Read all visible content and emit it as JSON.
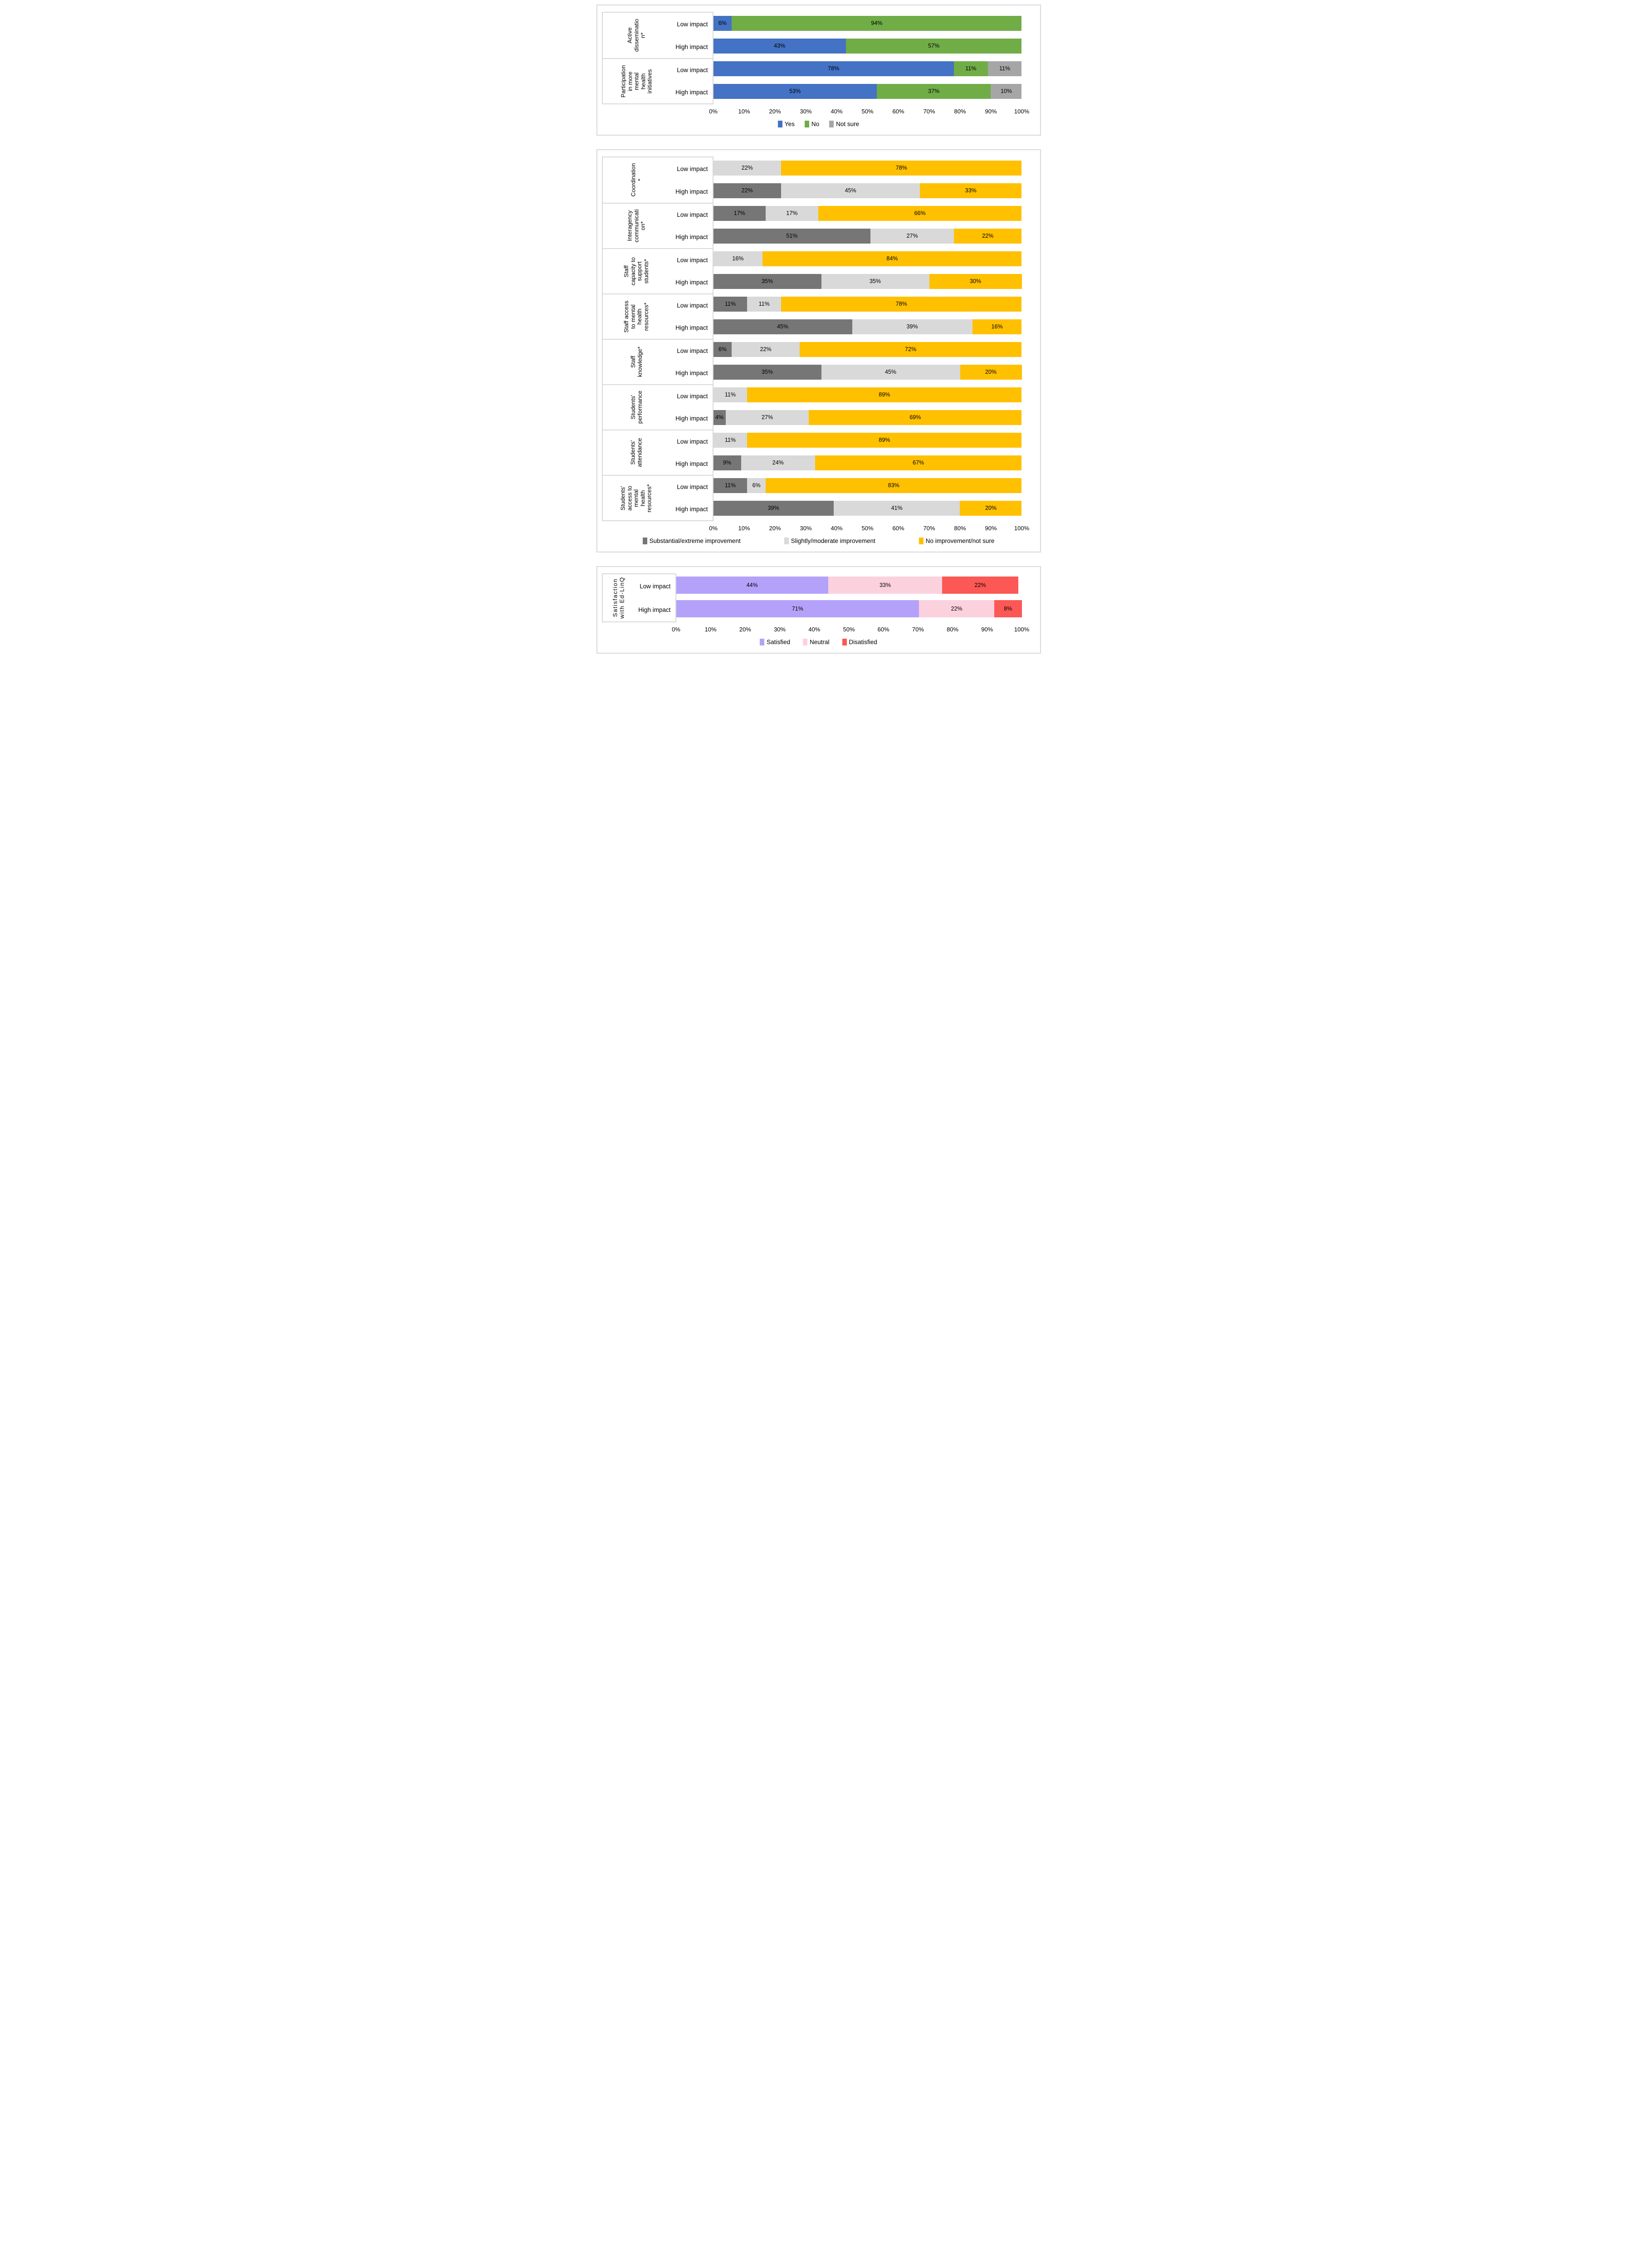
{
  "page_background": "#ffffff",
  "chart_data": [
    {
      "type": "bar",
      "orientation": "horizontal",
      "stacked": true,
      "unit": "%",
      "xlim": [
        0,
        100
      ],
      "grid": false,
      "legend_position": "bottom",
      "x_ticks": [
        "0%",
        "10%",
        "20%",
        "30%",
        "40%",
        "50%",
        "60%",
        "70%",
        "80%",
        "90%",
        "100%"
      ],
      "series": [
        {
          "name": "Yes",
          "color": "#4472C4"
        },
        {
          "name": "No",
          "color": "#70AD47"
        },
        {
          "name": "Not sure",
          "color": "#A6A6A6"
        }
      ],
      "groups": [
        {
          "label": "Active dissemination*",
          "label_lines": [
            "Active",
            "disseminatio",
            "n*"
          ],
          "rows": [
            {
              "label": "Low impact",
              "values": [
                6,
                94,
                0
              ]
            },
            {
              "label": "High impact",
              "values": [
                43,
                57,
                0
              ]
            }
          ]
        },
        {
          "label": "Participation in more mental health initiatives",
          "label_lines": [
            "Participation",
            "in more",
            "mental",
            "health",
            "initiatives"
          ],
          "rows": [
            {
              "label": "Low impact",
              "values": [
                78,
                11,
                11
              ]
            },
            {
              "label": "High impact",
              "values": [
                53,
                37,
                10
              ]
            }
          ]
        }
      ]
    },
    {
      "type": "bar",
      "orientation": "horizontal",
      "stacked": true,
      "unit": "%",
      "xlim": [
        0,
        100
      ],
      "grid": false,
      "legend_position": "bottom",
      "x_ticks": [
        "0%",
        "10%",
        "20%",
        "30%",
        "40%",
        "50%",
        "60%",
        "70%",
        "80%",
        "90%",
        "100%"
      ],
      "series": [
        {
          "name": "Substantial/extreme improvement",
          "color": "#767676"
        },
        {
          "name": "Slightly/moderate improvement",
          "color": "#D9D9D9"
        },
        {
          "name": "No improvement/not sure",
          "color": "#FFC000"
        }
      ],
      "groups": [
        {
          "label": "Coordination*",
          "label_lines": [
            "Coordination",
            "*"
          ],
          "rows": [
            {
              "label": "Low impact",
              "values": [
                0,
                22,
                78
              ]
            },
            {
              "label": "High impact",
              "values": [
                22,
                45,
                33
              ]
            }
          ]
        },
        {
          "label": "Interagency communication*",
          "label_lines": [
            "Interagency",
            "communicati",
            "on*"
          ],
          "rows": [
            {
              "label": "Low impact",
              "values": [
                17,
                17,
                66
              ]
            },
            {
              "label": "High impact",
              "values": [
                51,
                27,
                22
              ]
            }
          ]
        },
        {
          "label": "Staff capacity to support students*",
          "label_lines": [
            "Staff",
            "capacity to",
            "support",
            "students*"
          ],
          "rows": [
            {
              "label": "Low impact",
              "values": [
                0,
                16,
                84
              ]
            },
            {
              "label": "High impact",
              "values": [
                35,
                35,
                30
              ]
            }
          ]
        },
        {
          "label": "Staff access to mental health resources*",
          "label_lines": [
            "Staff access",
            "to mental",
            "health",
            "resources*"
          ],
          "rows": [
            {
              "label": "Low impact",
              "values": [
                11,
                11,
                78
              ]
            },
            {
              "label": "High impact",
              "values": [
                45,
                39,
                16
              ]
            }
          ]
        },
        {
          "label": "Staff knowledge*",
          "label_lines": [
            "Staff",
            "knowledge*"
          ],
          "rows": [
            {
              "label": "Low impact",
              "values": [
                6,
                22,
                72
              ]
            },
            {
              "label": "High impact",
              "values": [
                35,
                45,
                20
              ]
            }
          ]
        },
        {
          "label": "Students' performance",
          "label_lines": [
            "Students'",
            "performance"
          ],
          "rows": [
            {
              "label": "Low impact",
              "values": [
                0,
                11,
                89
              ]
            },
            {
              "label": "High impact",
              "values": [
                4,
                27,
                69
              ]
            }
          ]
        },
        {
          "label": "Students' attendance",
          "label_lines": [
            "Students'",
            "attendance"
          ],
          "rows": [
            {
              "label": "Low impact",
              "values": [
                0,
                11,
                89
              ]
            },
            {
              "label": "High impact",
              "values": [
                9,
                24,
                67
              ]
            }
          ]
        },
        {
          "label": "Students' access to mental health resources*",
          "label_lines": [
            "Students'",
            "access to",
            "mental",
            "health",
            "resources*"
          ],
          "rows": [
            {
              "label": "Low impact",
              "values": [
                11,
                6,
                83
              ]
            },
            {
              "label": "High impact",
              "values": [
                39,
                41,
                20
              ]
            }
          ]
        }
      ]
    },
    {
      "type": "bar",
      "orientation": "horizontal",
      "stacked": true,
      "unit": "%",
      "xlim": [
        0,
        100
      ],
      "grid": false,
      "legend_position": "bottom",
      "x_ticks": [
        "0%",
        "10%",
        "20%",
        "30%",
        "40%",
        "50%",
        "60%",
        "70%",
        "80%",
        "90%",
        "100%"
      ],
      "series": [
        {
          "name": "Satisfied",
          "color": "#B4A2FA"
        },
        {
          "name": "Neutral",
          "color": "#FCD1DE"
        },
        {
          "name": "Disatisfied",
          "color": "#FC5855"
        }
      ],
      "groups": [
        {
          "label": "Satisfaction with Ed-LinQ",
          "label_lines": [
            "Satisfaction",
            "with Ed-LinQ"
          ],
          "rows": [
            {
              "label": "Low impact",
              "values": [
                44,
                33,
                22
              ]
            },
            {
              "label": "High impact",
              "values": [
                71,
                22,
                8
              ]
            }
          ]
        }
      ]
    }
  ]
}
